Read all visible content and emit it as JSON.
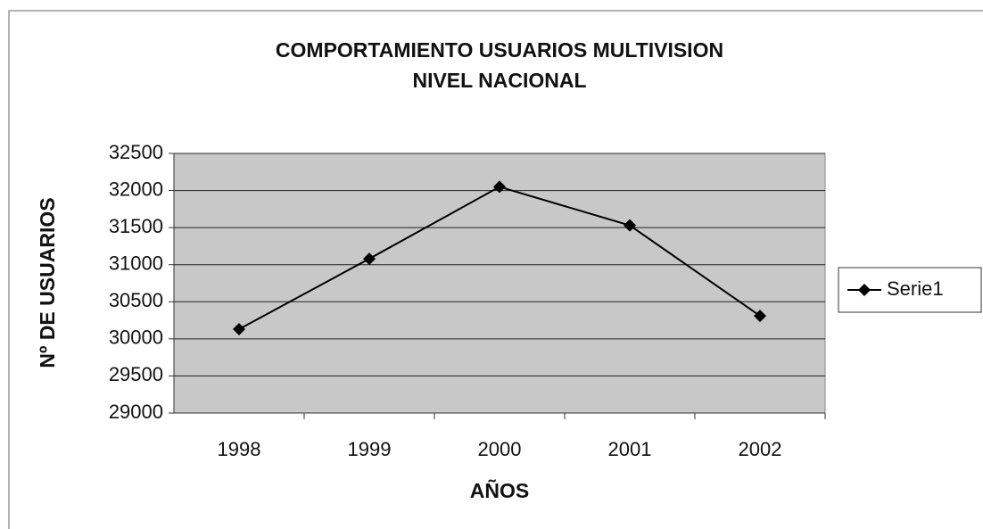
{
  "chart_data": {
    "type": "line",
    "title": [
      "COMPORTAMIENTO USUARIOS MULTIVISION",
      "NIVEL NACIONAL"
    ],
    "x_label": "AÑOS",
    "y_label": "Nº DE USUARIOS",
    "categories": [
      "1998",
      "1999",
      "2000",
      "2001",
      "2002"
    ],
    "series": [
      {
        "name": "Serie1",
        "color": "#000000",
        "values": [
          30130,
          31080,
          32050,
          31530,
          30310
        ]
      }
    ],
    "ylim": [
      29000,
      32500
    ],
    "yticks": [
      29000,
      29500,
      30000,
      30500,
      31000,
      31500,
      32000,
      32500
    ],
    "grid": true,
    "legend": "right"
  }
}
